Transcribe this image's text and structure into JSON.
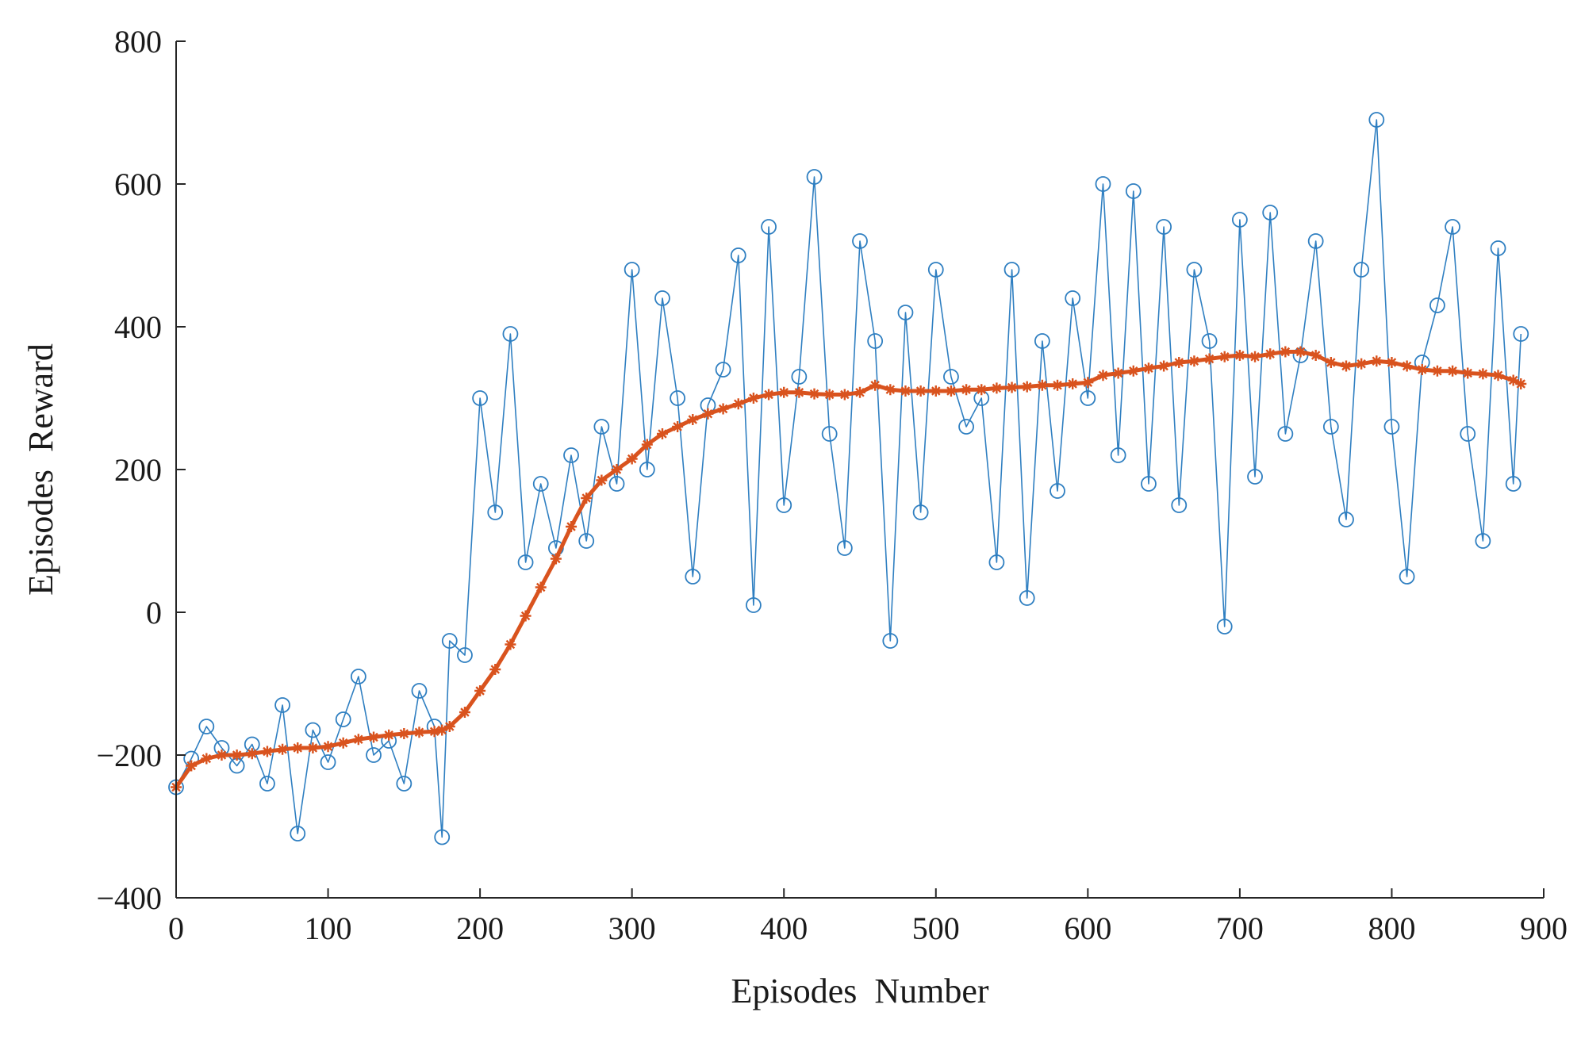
{
  "chart_data": {
    "type": "line",
    "title": "",
    "xlabel": "Episodes  Number",
    "ylabel": "Episodes  Reward",
    "xlim": [
      0,
      900
    ],
    "ylim": [
      -400,
      800
    ],
    "xticks": [
      0,
      100,
      200,
      300,
      400,
      500,
      600,
      700,
      800,
      900
    ],
    "yticks": [
      -400,
      -200,
      0,
      200,
      400,
      600,
      800
    ],
    "xtick_labels": [
      "0",
      "100",
      "200",
      "300",
      "400",
      "500",
      "600",
      "700",
      "800",
      "900"
    ],
    "ytick_labels": [
      "−400",
      "−200",
      "0",
      "200",
      "400",
      "600",
      "800"
    ],
    "grid": false,
    "legend": "none",
    "series": [
      {
        "marker": "circle",
        "color": "#2f7fc1",
        "x": [
          0,
          10,
          20,
          30,
          40,
          50,
          60,
          70,
          80,
          90,
          100,
          110,
          120,
          130,
          140,
          150,
          160,
          170,
          175,
          180,
          190,
          200,
          210,
          220,
          230,
          240,
          250,
          260,
          270,
          280,
          290,
          300,
          310,
          320,
          330,
          340,
          350,
          360,
          370,
          380,
          390,
          400,
          410,
          420,
          430,
          440,
          450,
          460,
          470,
          480,
          490,
          500,
          510,
          520,
          530,
          540,
          550,
          560,
          570,
          580,
          590,
          600,
          610,
          620,
          630,
          640,
          650,
          660,
          670,
          680,
          690,
          700,
          710,
          720,
          730,
          740,
          750,
          760,
          770,
          780,
          790,
          800,
          810,
          820,
          830,
          840,
          850,
          860,
          870,
          880,
          885
        ],
        "y": [
          -245,
          -205,
          -160,
          -190,
          -215,
          -185,
          -240,
          -130,
          -310,
          -165,
          -210,
          -150,
          -90,
          -200,
          -180,
          -240,
          -110,
          -160,
          -315,
          -40,
          -60,
          300,
          140,
          390,
          70,
          180,
          90,
          220,
          100,
          260,
          180,
          480,
          200,
          440,
          300,
          50,
          290,
          340,
          500,
          10,
          540,
          150,
          330,
          610,
          250,
          90,
          520,
          380,
          -40,
          420,
          140,
          480,
          330,
          260,
          300,
          70,
          480,
          20,
          380,
          170,
          440,
          300,
          600,
          220,
          590,
          180,
          540,
          150,
          480,
          380,
          -20,
          550,
          190,
          560,
          250,
          360,
          520,
          260,
          130,
          480,
          690,
          260,
          50,
          350,
          430,
          540,
          250,
          100,
          510,
          180,
          390
        ]
      },
      {
        "marker": "star",
        "color": "#d9531e",
        "x": [
          0,
          10,
          20,
          30,
          40,
          50,
          60,
          70,
          80,
          90,
          100,
          110,
          120,
          130,
          140,
          150,
          160,
          170,
          175,
          180,
          190,
          200,
          210,
          220,
          230,
          240,
          250,
          260,
          270,
          280,
          290,
          300,
          310,
          320,
          330,
          340,
          350,
          360,
          370,
          380,
          390,
          400,
          410,
          420,
          430,
          440,
          450,
          460,
          470,
          480,
          490,
          500,
          510,
          520,
          530,
          540,
          550,
          560,
          570,
          580,
          590,
          600,
          610,
          620,
          630,
          640,
          650,
          660,
          670,
          680,
          690,
          700,
          710,
          720,
          730,
          740,
          750,
          760,
          770,
          780,
          790,
          800,
          810,
          820,
          830,
          840,
          850,
          860,
          870,
          880,
          885
        ],
        "y": [
          -245,
          -215,
          -205,
          -200,
          -200,
          -198,
          -195,
          -192,
          -190,
          -190,
          -188,
          -183,
          -178,
          -175,
          -172,
          -170,
          -168,
          -167,
          -165,
          -160,
          -140,
          -110,
          -80,
          -45,
          -5,
          35,
          75,
          120,
          160,
          185,
          200,
          215,
          235,
          250,
          260,
          270,
          278,
          285,
          292,
          300,
          305,
          308,
          308,
          306,
          305,
          305,
          308,
          318,
          312,
          310,
          310,
          310,
          310,
          312,
          312,
          314,
          315,
          316,
          318,
          318,
          320,
          322,
          332,
          335,
          338,
          342,
          345,
          350,
          352,
          355,
          358,
          360,
          358,
          362,
          365,
          365,
          360,
          350,
          345,
          348,
          352,
          350,
          345,
          340,
          338,
          338,
          335,
          334,
          332,
          325,
          320
        ]
      }
    ]
  }
}
